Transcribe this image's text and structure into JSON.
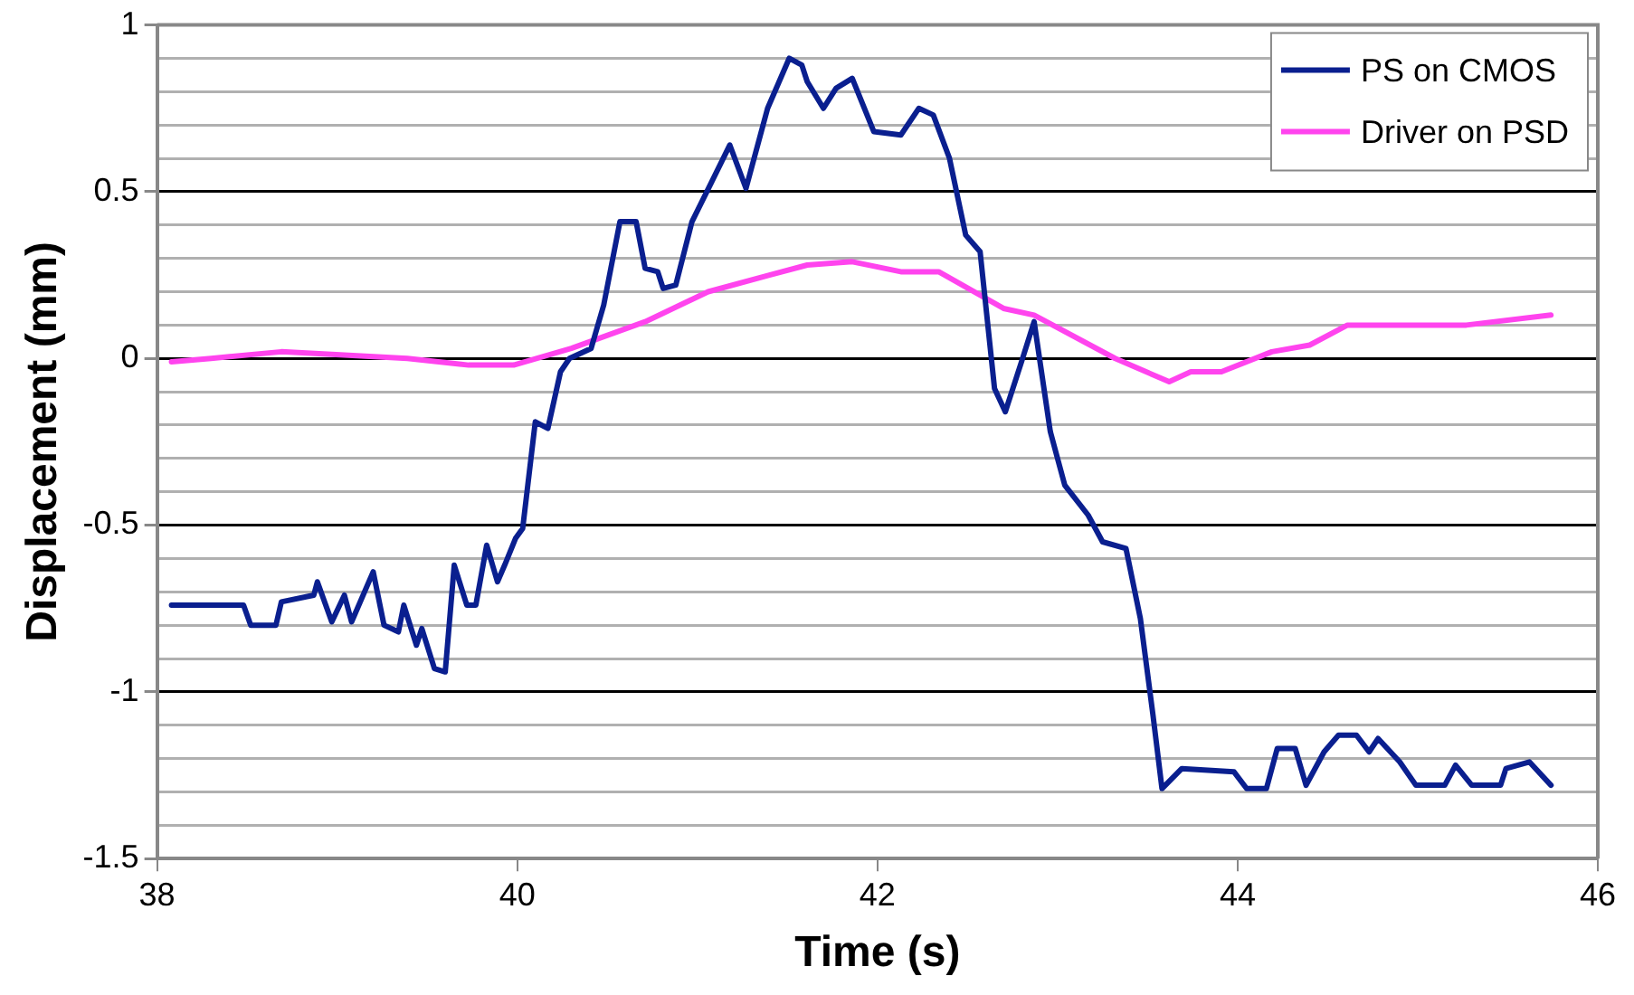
{
  "chart_data": {
    "type": "line",
    "xlabel": "Time (s)",
    "ylabel": "Displacement (mm)",
    "xlim": [
      38,
      46
    ],
    "xticks": [
      38,
      40,
      42,
      44,
      46
    ],
    "ylim": [
      -1.5,
      1
    ],
    "yticks": [
      -1.5,
      {
        "value": -1.4,
        "label": null
      },
      {
        "value": -1.3,
        "label": null
      },
      {
        "value": -1.2,
        "label": null
      },
      {
        "value": -1.1,
        "label": null
      },
      -1,
      {
        "value": -0.9,
        "label": null
      },
      {
        "value": -0.8,
        "label": null
      },
      {
        "value": -0.7,
        "label": null
      },
      {
        "value": -0.6,
        "label": null
      },
      -0.5,
      {
        "value": -0.4,
        "label": null
      },
      {
        "value": -0.3,
        "label": null
      },
      {
        "value": -0.2,
        "label": null
      },
      {
        "value": -0.1,
        "label": null
      },
      0,
      {
        "value": 0.1,
        "label": null
      },
      {
        "value": 0.2,
        "label": null
      },
      {
        "value": 0.3,
        "label": null
      },
      {
        "value": 0.4,
        "label": null
      },
      0.5,
      {
        "value": 0.6,
        "label": null
      },
      {
        "value": 0.7,
        "label": null
      },
      {
        "value": 0.8,
        "label": null
      },
      {
        "value": 0.9,
        "label": null
      },
      1
    ],
    "grid": "y",
    "legend": "top right",
    "marker": "none",
    "line_style": "solid",
    "series": [
      {
        "name": "PS on CMOS",
        "color": "#0a1f8f",
        "x": [
          38.08,
          38.48,
          38.52,
          38.66,
          38.69,
          38.87,
          38.89,
          38.97,
          39.04,
          39.08,
          39.2,
          39.26,
          39.34,
          39.37,
          39.44,
          39.47,
          39.54,
          39.6,
          39.65,
          39.72,
          39.77,
          39.83,
          39.89,
          39.93,
          39.99,
          40.03,
          40.1,
          40.17,
          40.24,
          40.29,
          40.41,
          40.48,
          40.57,
          40.66,
          40.71,
          40.78,
          40.81,
          40.88,
          40.97,
          41.08,
          41.18,
          41.27,
          41.39,
          41.51,
          41.58,
          41.61,
          41.7,
          41.77,
          41.86,
          41.98,
          42.13,
          42.23,
          42.31,
          42.4,
          42.49,
          42.57,
          42.65,
          42.71,
          42.8,
          42.87,
          42.96,
          43.04,
          43.17,
          43.25,
          43.38,
          43.46,
          43.53,
          43.58,
          43.69,
          43.98,
          44.05,
          44.16,
          44.22,
          44.32,
          44.38,
          44.48,
          44.56,
          44.66,
          44.73,
          44.78,
          44.9,
          44.99,
          45.15,
          45.21,
          45.3,
          45.46,
          45.49,
          45.62,
          45.74
        ],
        "values": [
          -0.74,
          -0.74,
          -0.8,
          -0.8,
          -0.73,
          -0.71,
          -0.67,
          -0.79,
          -0.71,
          -0.79,
          -0.64,
          -0.8,
          -0.82,
          -0.74,
          -0.86,
          -0.81,
          -0.93,
          -0.94,
          -0.62,
          -0.74,
          -0.74,
          -0.56,
          -0.67,
          -0.62,
          -0.54,
          -0.51,
          -0.19,
          -0.21,
          -0.04,
          0,
          0.03,
          0.16,
          0.41,
          0.41,
          0.27,
          0.26,
          0.21,
          0.22,
          0.41,
          0.53,
          0.64,
          0.51,
          0.75,
          0.9,
          0.88,
          0.83,
          0.75,
          0.81,
          0.84,
          0.68,
          0.67,
          0.75,
          0.73,
          0.6,
          0.37,
          0.32,
          -0.09,
          -0.16,
          -0.01,
          0.11,
          -0.22,
          -0.38,
          -0.47,
          -0.55,
          -0.57,
          -0.78,
          -1.07,
          -1.29,
          -1.23,
          -1.24,
          -1.29,
          -1.29,
          -1.17,
          -1.17,
          -1.28,
          -1.18,
          -1.13,
          -1.13,
          -1.18,
          -1.14,
          -1.21,
          -1.28,
          -1.28,
          -1.22,
          -1.28,
          -1.28,
          -1.23,
          -1.21,
          -1.28
        ]
      },
      {
        "name": "Driver on PSD",
        "color": "#ff44ee",
        "x": [
          38.08,
          38.3,
          38.69,
          39.39,
          39.73,
          39.98,
          40.3,
          40.71,
          41.06,
          41.4,
          41.61,
          41.86,
          42.13,
          42.34,
          42.7,
          42.87,
          43.32,
          43.62,
          43.74,
          43.91,
          44.19,
          44.4,
          44.61,
          45.27,
          45.74
        ],
        "values": [
          -0.01,
          0,
          0.02,
          0,
          -0.02,
          -0.02,
          0.03,
          0.11,
          0.2,
          0.25,
          0.28,
          0.29,
          0.26,
          0.26,
          0.15,
          0.13,
          0,
          -0.07,
          -0.04,
          -0.04,
          0.02,
          0.04,
          0.1,
          0.1,
          0.13
        ]
      }
    ]
  }
}
